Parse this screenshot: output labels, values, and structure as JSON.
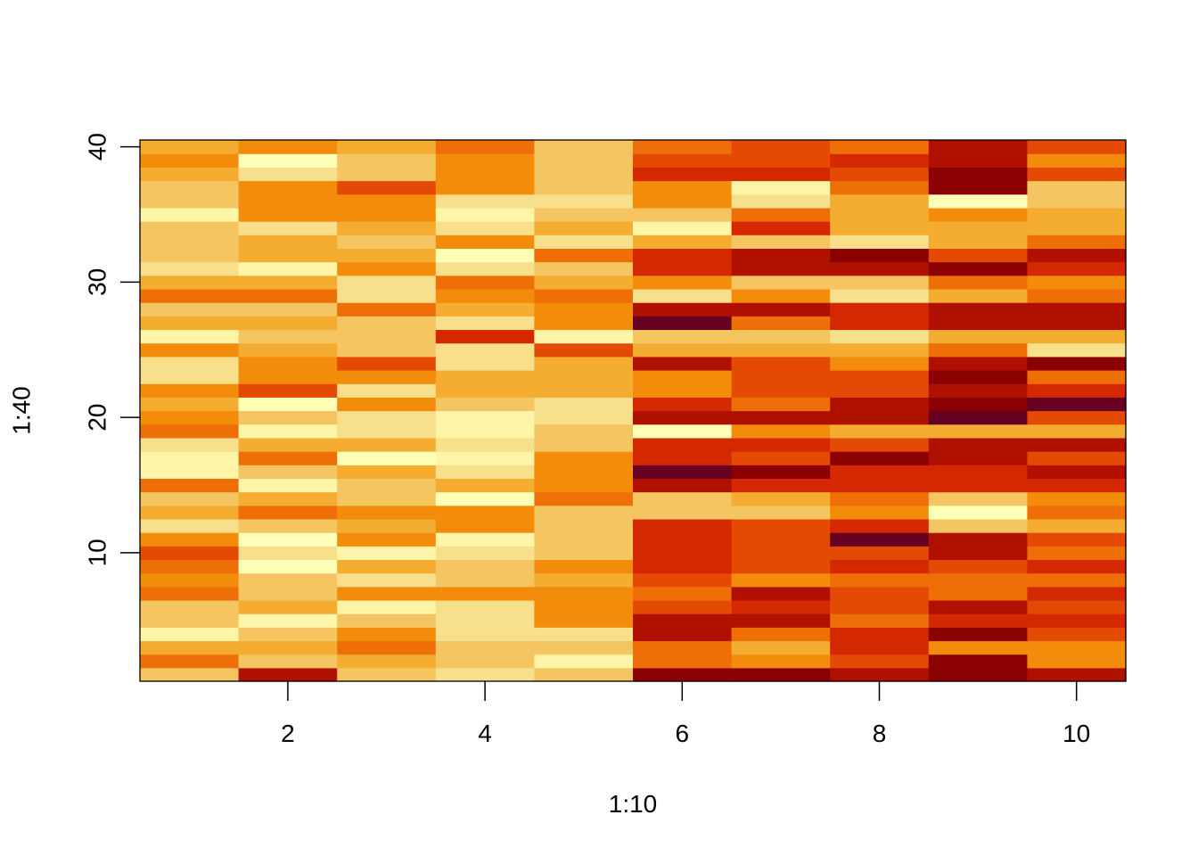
{
  "chart_data": {
    "type": "heatmap",
    "title": "",
    "xlabel": "1:10",
    "ylabel": "1:40",
    "x_values": [
      1,
      2,
      3,
      4,
      5,
      6,
      7,
      8,
      9,
      10
    ],
    "y_values": [
      1,
      2,
      3,
      4,
      5,
      6,
      7,
      8,
      9,
      10,
      11,
      12,
      13,
      14,
      15,
      16,
      17,
      18,
      19,
      20,
      21,
      22,
      23,
      24,
      25,
      26,
      27,
      28,
      29,
      30,
      31,
      32,
      33,
      34,
      35,
      36,
      37,
      38,
      39,
      40
    ],
    "xlim": [
      0.5,
      10.5
    ],
    "ylim": [
      0.5,
      40.5
    ],
    "x_ticks": [
      2,
      4,
      6,
      8,
      10
    ],
    "y_ticks": [
      10,
      20,
      30,
      40
    ],
    "color_scale": "heat.colors (low = dark red, high = pale yellow)",
    "palette": [
      "#660022",
      "#8B0000",
      "#B01000",
      "#D42800",
      "#E54A05",
      "#EE6F08",
      "#F28C0A",
      "#F4AD30",
      "#F4C560",
      "#F8DF8C",
      "#FFF5A8",
      "#FFFFB8"
    ],
    "levels_note": "z values are palette indices 0 (darkest) to 11 (lightest); columns are x = 1..10, rows are y = 1..40 (bottom to top)",
    "z": [
      [
        8,
        2,
        8,
        9,
        8,
        1,
        1,
        2,
        1,
        2
      ],
      [
        5,
        8,
        7,
        8,
        10,
        5,
        6,
        4,
        1,
        6
      ],
      [
        7,
        7,
        5,
        8,
        8,
        5,
        7,
        3,
        6,
        6
      ],
      [
        10,
        8,
        6,
        9,
        9,
        2,
        5,
        3,
        1,
        4
      ],
      [
        8,
        10,
        8,
        9,
        6,
        2,
        2,
        5,
        3,
        3
      ],
      [
        8,
        7,
        10,
        9,
        6,
        4,
        3,
        4,
        2,
        4
      ],
      [
        5,
        8,
        6,
        6,
        6,
        5,
        2,
        4,
        5,
        3
      ],
      [
        6,
        8,
        9,
        8,
        7,
        4,
        6,
        5,
        5,
        5
      ],
      [
        5,
        11,
        7,
        8,
        6,
        3,
        4,
        3,
        4,
        3
      ],
      [
        4,
        9,
        10,
        9,
        8,
        3,
        4,
        4,
        2,
        5
      ],
      [
        6,
        11,
        6,
        10,
        8,
        3,
        4,
        0,
        2,
        4
      ],
      [
        9,
        8,
        7,
        6,
        8,
        3,
        4,
        3,
        8,
        7
      ],
      [
        7,
        5,
        6,
        6,
        8,
        8,
        8,
        6,
        11,
        5
      ],
      [
        8,
        7,
        8,
        11,
        5,
        8,
        7,
        5,
        8,
        6
      ],
      [
        5,
        10,
        8,
        7,
        6,
        2,
        3,
        3,
        3,
        3
      ],
      [
        10,
        8,
        7,
        9,
        6,
        0,
        1,
        3,
        3,
        2
      ],
      [
        10,
        5,
        11,
        10,
        6,
        3,
        4,
        1,
        2,
        4
      ],
      [
        9,
        7,
        7,
        9,
        8,
        3,
        3,
        4,
        2,
        2
      ],
      [
        5,
        10,
        9,
        10,
        8,
        11,
        6,
        7,
        7,
        7
      ],
      [
        6,
        8,
        9,
        10,
        9,
        2,
        2,
        2,
        0,
        4
      ],
      [
        7,
        11,
        6,
        8,
        9,
        3,
        5,
        2,
        1,
        0
      ],
      [
        6,
        4,
        9,
        7,
        7,
        6,
        4,
        4,
        2,
        3
      ],
      [
        9,
        6,
        6,
        7,
        7,
        6,
        4,
        4,
        1,
        5
      ],
      [
        9,
        6,
        4,
        9,
        7,
        2,
        4,
        6,
        2,
        1
      ],
      [
        6,
        7,
        8,
        9,
        4,
        7,
        7,
        7,
        5,
        9
      ],
      [
        10,
        8,
        8,
        3,
        10,
        8,
        8,
        9,
        7,
        7
      ],
      [
        7,
        7,
        8,
        9,
        6,
        0,
        5,
        3,
        2,
        2
      ],
      [
        8,
        8,
        5,
        7,
        6,
        2,
        2,
        3,
        2,
        2
      ],
      [
        5,
        5,
        9,
        6,
        5,
        9,
        6,
        9,
        7,
        5
      ],
      [
        7,
        7,
        9,
        5,
        7,
        6,
        8,
        8,
        5,
        6
      ],
      [
        9,
        10,
        6,
        9,
        8,
        3,
        2,
        2,
        1,
        3
      ],
      [
        8,
        7,
        7,
        11,
        5,
        3,
        2,
        1,
        4,
        2
      ],
      [
        8,
        7,
        8,
        6,
        9,
        7,
        8,
        9,
        7,
        5
      ],
      [
        8,
        9,
        7,
        9,
        7,
        10,
        3,
        7,
        7,
        7
      ],
      [
        10,
        6,
        6,
        10,
        8,
        8,
        5,
        7,
        6,
        7
      ],
      [
        8,
        6,
        6,
        9,
        9,
        6,
        9,
        7,
        11,
        8
      ],
      [
        8,
        6,
        4,
        6,
        8,
        6,
        10,
        5,
        1,
        8
      ],
      [
        7,
        9,
        8,
        6,
        8,
        3,
        3,
        4,
        1,
        4
      ],
      [
        6,
        11,
        8,
        6,
        8,
        4,
        4,
        3,
        2,
        6
      ],
      [
        7,
        6,
        7,
        5,
        8,
        5,
        4,
        5,
        2,
        4
      ]
    ]
  }
}
